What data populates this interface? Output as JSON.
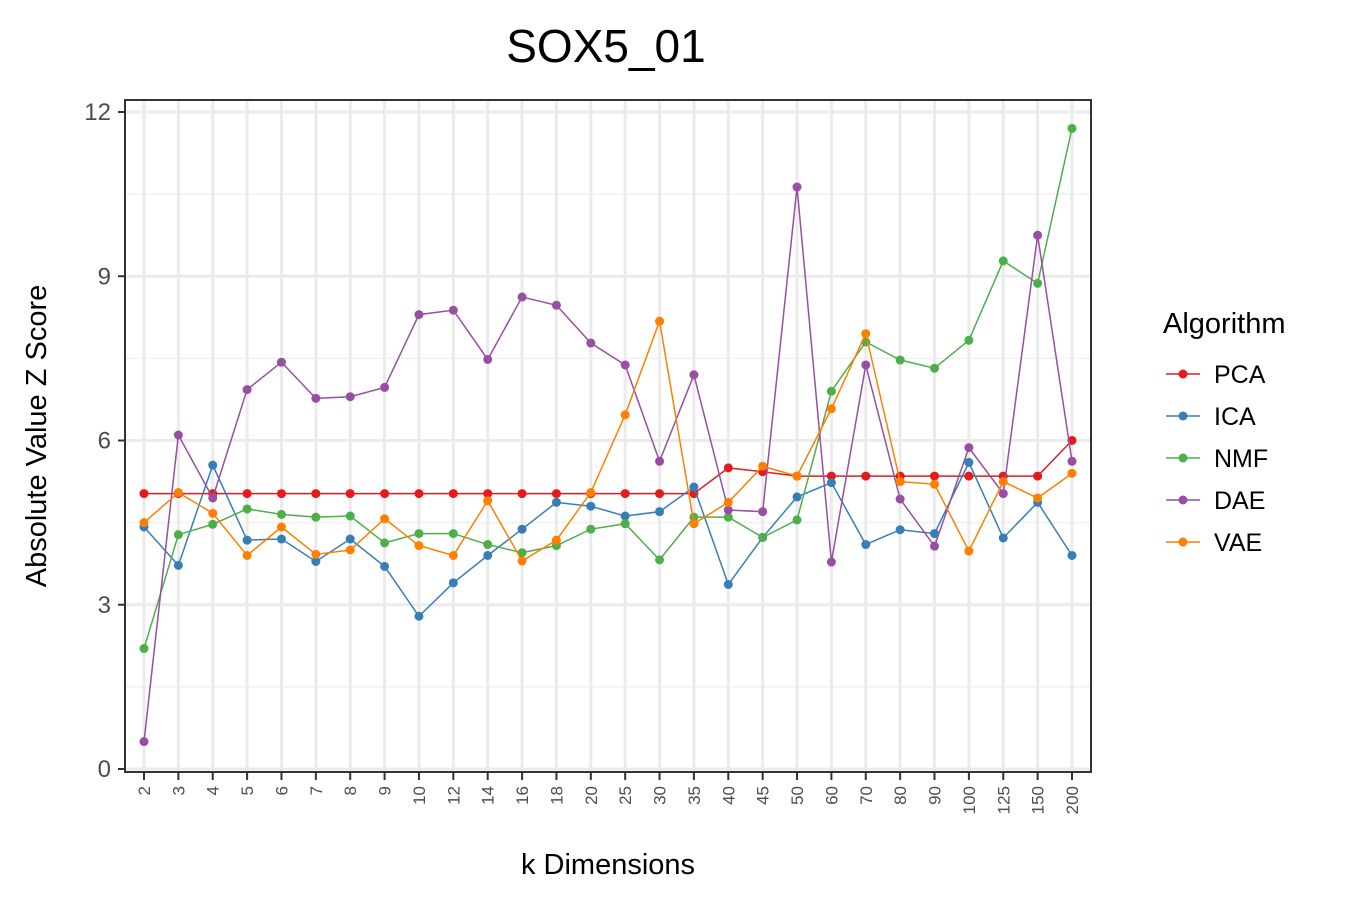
{
  "chart_data": {
    "type": "line",
    "title": "SOX5_01",
    "xlabel": "k Dimensions",
    "ylabel": "Absolute Value Z Score",
    "ylim": [
      0,
      12
    ],
    "yticks": [
      0,
      3,
      6,
      9,
      12
    ],
    "grid": true,
    "legend": {
      "title": "Algorithm",
      "placement": "right"
    },
    "categories": [
      "2",
      "3",
      "4",
      "5",
      "6",
      "7",
      "8",
      "9",
      "10",
      "12",
      "14",
      "16",
      "18",
      "20",
      "25",
      "30",
      "35",
      "40",
      "45",
      "50",
      "60",
      "70",
      "80",
      "90",
      "100",
      "125",
      "150",
      "200"
    ],
    "series": [
      {
        "name": "PCA",
        "color": "#e41a1c",
        "values": [
          5.03,
          5.03,
          5.03,
          5.03,
          5.03,
          5.03,
          5.03,
          5.03,
          5.03,
          5.03,
          5.03,
          5.03,
          5.03,
          5.03,
          5.03,
          5.03,
          5.03,
          5.5,
          5.43,
          5.35,
          5.35,
          5.35,
          5.35,
          5.35,
          5.35,
          5.35,
          5.35,
          6.0
        ]
      },
      {
        "name": "ICA",
        "color": "#377eb8",
        "values": [
          4.42,
          3.72,
          5.55,
          4.18,
          4.2,
          3.79,
          4.2,
          3.7,
          2.79,
          3.4,
          3.9,
          4.38,
          4.87,
          4.8,
          4.62,
          4.7,
          5.15,
          3.37,
          4.23,
          4.97,
          5.23,
          4.1,
          4.37,
          4.3,
          5.6,
          4.22,
          4.87,
          3.9
        ]
      },
      {
        "name": "NMF",
        "color": "#4daf4a",
        "values": [
          2.2,
          4.28,
          4.47,
          4.75,
          4.65,
          4.6,
          4.62,
          4.13,
          4.3,
          4.3,
          4.1,
          3.95,
          4.08,
          4.38,
          4.48,
          3.82,
          4.6,
          4.6,
          4.23,
          4.55,
          6.9,
          7.8,
          7.47,
          7.32,
          7.83,
          9.28,
          8.87,
          11.7
        ]
      },
      {
        "name": "DAE",
        "color": "#984ea3",
        "values": [
          0.5,
          6.1,
          4.95,
          6.93,
          7.43,
          6.77,
          6.8,
          6.97,
          8.3,
          8.38,
          7.48,
          8.62,
          8.47,
          7.78,
          7.38,
          5.62,
          7.2,
          4.73,
          4.7,
          10.63,
          3.78,
          7.38,
          4.93,
          4.07,
          5.87,
          5.03,
          9.75,
          5.62
        ]
      },
      {
        "name": "VAE",
        "color": "#ff7f00",
        "values": [
          4.5,
          5.05,
          4.67,
          3.9,
          4.42,
          3.92,
          4.0,
          4.57,
          4.08,
          3.9,
          4.9,
          3.8,
          4.18,
          5.05,
          6.47,
          8.18,
          4.48,
          4.87,
          5.53,
          5.35,
          6.58,
          7.95,
          5.25,
          5.2,
          3.98,
          5.25,
          4.95,
          5.4
        ]
      }
    ]
  }
}
